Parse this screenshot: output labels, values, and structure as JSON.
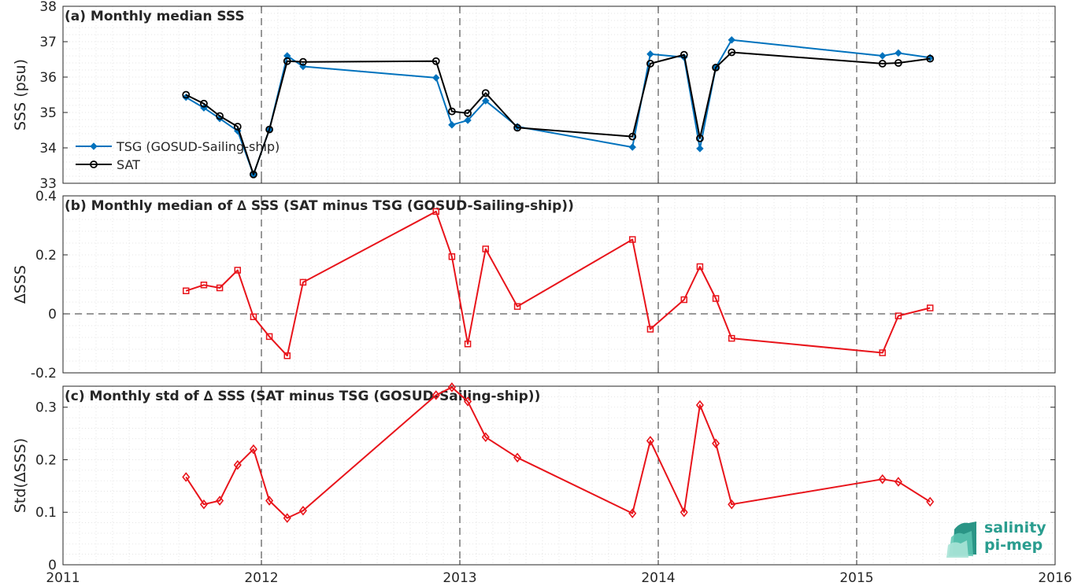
{
  "colors": {
    "tsg": "#0072BD",
    "sat": "#000000",
    "delta": "#E8141B",
    "axis": "#262626",
    "grid": "#dcdcdc"
  },
  "chart_data": [
    {
      "type": "line",
      "title": "(a) Monthly median SSS",
      "ylabel": "SSS (psu)",
      "ylim": [
        33,
        38
      ],
      "yticks": [
        "33",
        "34",
        "35",
        "36",
        "37",
        "38"
      ],
      "xlim": [
        2011,
        2016
      ],
      "grid": true,
      "legend_position": "bottom-left",
      "series": [
        {
          "name": "TSG (GOSUD-Sailing-ship)",
          "marker": "filled-diamond",
          "x": [
            2011.62,
            2011.71,
            2011.79,
            2011.88,
            2011.96,
            2012.04,
            2012.13,
            2012.21,
            2012.88,
            2012.96,
            2013.04,
            2013.13,
            2013.29,
            2013.87,
            2013.96,
            2014.13,
            2014.21,
            2014.29,
            2014.37,
            2015.13,
            2015.21,
            2015.37
          ],
          "values": [
            35.43,
            35.13,
            34.83,
            34.48,
            33.25,
            34.52,
            36.6,
            36.3,
            35.98,
            34.65,
            34.78,
            35.33,
            34.6,
            34.02,
            36.65,
            36.56,
            33.98,
            36.27,
            37.05,
            36.6,
            36.68,
            36.55
          ]
        },
        {
          "name": "SAT",
          "marker": "open-circle",
          "x": [
            2011.62,
            2011.71,
            2011.79,
            2011.88,
            2011.96,
            2012.04,
            2012.13,
            2012.21,
            2012.88,
            2012.96,
            2013.04,
            2013.13,
            2013.29,
            2013.87,
            2013.96,
            2014.13,
            2014.21,
            2014.29,
            2014.37,
            2015.13,
            2015.21,
            2015.37
          ],
          "values": [
            35.5,
            35.25,
            34.9,
            34.6,
            33.25,
            34.52,
            36.45,
            36.43,
            36.45,
            35.03,
            34.98,
            35.55,
            34.57,
            34.32,
            36.38,
            36.63,
            34.27,
            36.27,
            36.7,
            36.38,
            36.4,
            36.52
          ]
        }
      ]
    },
    {
      "type": "line",
      "title": "(b) Monthly median of ∆ SSS (SAT minus TSG (GOSUD-Sailing-ship))",
      "ylabel": "∆SSS",
      "ylim": [
        -0.2,
        0.4
      ],
      "yticks": [
        "-0.2",
        "0",
        "0.2",
        "0.4"
      ],
      "xlim": [
        2011,
        2016
      ],
      "grid": true,
      "zero_line": true,
      "series": [
        {
          "marker": "open-square",
          "x": [
            2011.62,
            2011.71,
            2011.79,
            2011.88,
            2011.96,
            2012.04,
            2012.13,
            2012.21,
            2012.88,
            2012.96,
            2013.04,
            2013.13,
            2013.29,
            2013.87,
            2013.96,
            2014.13,
            2014.21,
            2014.29,
            2014.37,
            2015.13,
            2015.21,
            2015.37
          ],
          "values": [
            0.078,
            0.098,
            0.088,
            0.148,
            -0.01,
            -0.077,
            -0.142,
            0.107,
            0.347,
            0.194,
            -0.102,
            0.22,
            0.025,
            0.252,
            -0.052,
            0.048,
            0.16,
            0.052,
            -0.083,
            -0.132,
            -0.007,
            0.02
          ]
        }
      ]
    },
    {
      "type": "line",
      "title": "(c) Monthly std of ∆ SSS (SAT minus TSG (GOSUD-Sailing-ship))",
      "ylabel": "Std(∆SSS)",
      "ylim": [
        0,
        0.34
      ],
      "yticks": [
        "0",
        "0.1",
        "0.2",
        "0.3"
      ],
      "xlim": [
        2011,
        2016
      ],
      "xticks": [
        "2011",
        "2012",
        "2013",
        "2014",
        "2015",
        "2016"
      ],
      "grid": true,
      "series": [
        {
          "marker": "open-diamond",
          "x": [
            2011.62,
            2011.71,
            2011.79,
            2011.88,
            2011.96,
            2012.04,
            2012.13,
            2012.21,
            2012.88,
            2012.96,
            2013.04,
            2013.13,
            2013.29,
            2013.87,
            2013.96,
            2014.13,
            2014.21,
            2014.29,
            2014.37,
            2015.13,
            2015.21,
            2015.37
          ],
          "values": [
            0.167,
            0.115,
            0.122,
            0.19,
            0.22,
            0.122,
            0.089,
            0.103,
            0.323,
            0.338,
            0.311,
            0.243,
            0.204,
            0.098,
            0.236,
            0.1,
            0.304,
            0.231,
            0.115,
            0.163,
            0.158,
            0.12
          ]
        }
      ]
    }
  ],
  "logo": {
    "line1": "salinity",
    "line2": "pi-mep"
  }
}
